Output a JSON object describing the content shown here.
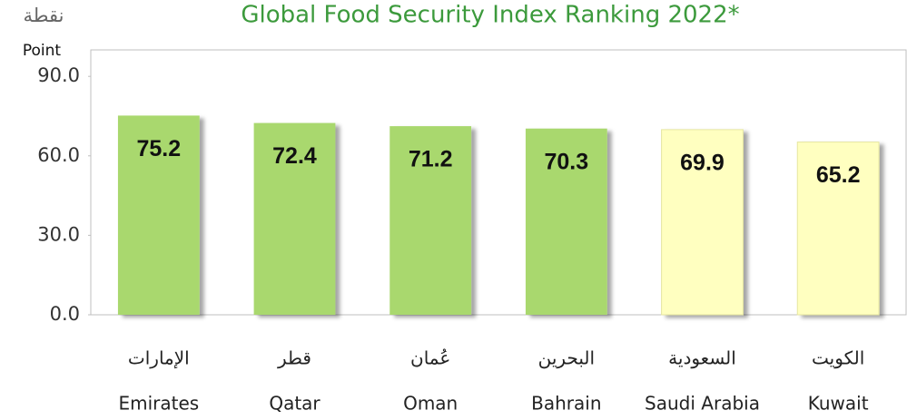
{
  "chart_data": {
    "type": "bar",
    "title": "Global Food Security Index Ranking 2022*",
    "y_label_ar": "نقطة",
    "y_label": "Point",
    "categories": [
      "Emirates",
      "Qatar",
      "Oman",
      "Bahrain",
      "Saudi Arabia",
      "Kuwait"
    ],
    "categories_ar": [
      "الإمارات",
      "قطر",
      "عُمان",
      "البحرين",
      "السعودية",
      "الكويت"
    ],
    "values": [
      75.2,
      72.4,
      71.2,
      70.3,
      69.9,
      65.2
    ],
    "colors": [
      "#a9d86e",
      "#a9d86e",
      "#a9d86e",
      "#a9d86e",
      "#ffffc0",
      "#ffffc0"
    ],
    "ylim": [
      0,
      100
    ],
    "yticks": [
      {
        "value": 0,
        "label": "0.0"
      },
      {
        "value": 30,
        "label": "30.0"
      },
      {
        "value": 60,
        "label": "60.0"
      },
      {
        "value": 90,
        "label": "90.0"
      }
    ],
    "grid": false
  }
}
